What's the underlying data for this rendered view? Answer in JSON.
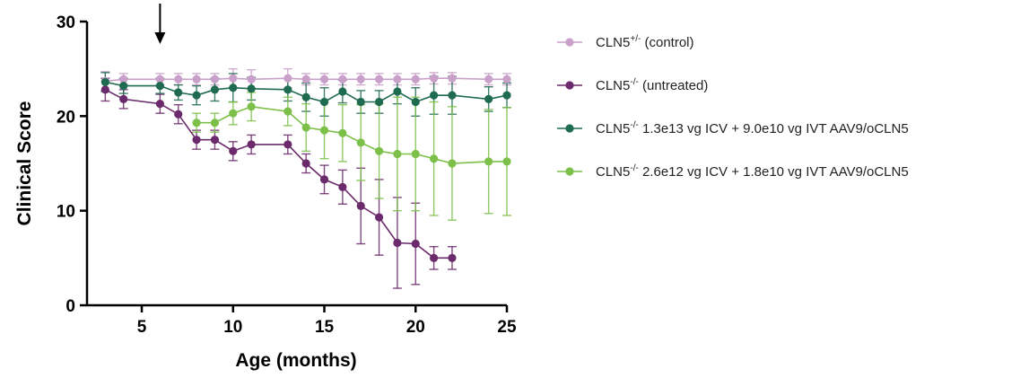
{
  "chart_data": {
    "type": "line",
    "xlabel": "Age (months)",
    "ylabel": "Clinical Score",
    "xlim": [
      2,
      25
    ],
    "ylim": [
      0,
      30
    ],
    "x_ticks": [
      5,
      10,
      15,
      20,
      25
    ],
    "y_ticks": [
      0,
      10,
      20,
      30
    ],
    "x_tick_labels": [
      "5",
      "10",
      "15",
      "20",
      "25"
    ],
    "y_tick_labels": [
      "0",
      "10",
      "20",
      "30"
    ],
    "annotation": "arrow at 6 months",
    "arrow_x": 6,
    "legend_position": "right",
    "series": [
      {
        "name_base": "CLN5",
        "name_sup": "+/-",
        "name_rest": " (control)",
        "color": "#c9a0c9",
        "x": [
          3,
          4,
          6,
          7,
          8,
          9,
          10,
          11,
          13,
          14,
          15,
          16,
          17,
          18,
          19,
          20,
          21,
          22,
          24,
          25
        ],
        "y": [
          23.7,
          23.9,
          23.9,
          23.9,
          23.9,
          23.9,
          24.0,
          23.9,
          24.0,
          23.9,
          23.9,
          23.9,
          23.9,
          23.9,
          23.9,
          23.9,
          24.0,
          24.0,
          23.9,
          23.9
        ],
        "err": [
          1.0,
          0.6,
          0.6,
          0.6,
          0.6,
          0.6,
          1.0,
          1.0,
          1.0,
          0.6,
          0.6,
          0.6,
          0.6,
          0.6,
          0.6,
          0.6,
          0.6,
          0.6,
          0.6,
          0.6
        ]
      },
      {
        "name_base": "CLN5",
        "name_sup": "-/-",
        "name_rest": " (untreated)",
        "color": "#6b2a6b",
        "x": [
          3,
          4,
          6,
          7,
          8,
          9,
          10,
          11,
          13,
          14,
          15,
          16,
          17,
          18,
          19,
          20,
          21,
          22
        ],
        "y": [
          22.8,
          21.8,
          21.3,
          20.2,
          17.5,
          17.5,
          16.3,
          17.0,
          17.0,
          15.0,
          13.3,
          12.5,
          10.5,
          9.3,
          6.6,
          6.5,
          5.0,
          5.0
        ],
        "err": [
          1.2,
          1.0,
          1.0,
          1.0,
          1.0,
          1.0,
          1.0,
          1.0,
          1.0,
          1.0,
          1.5,
          1.8,
          4.0,
          4.0,
          4.8,
          4.3,
          1.2,
          1.2
        ]
      },
      {
        "name_base": "CLN5",
        "name_sup": "-/-",
        "name_rest": " 1.3e13 vg ICV  + 9.0e10 vg IVT AAV9/oCLN5",
        "color": "#1f6b4f",
        "x": [
          3,
          4,
          6,
          7,
          8,
          9,
          10,
          11,
          13,
          14,
          15,
          16,
          17,
          18,
          19,
          20,
          21,
          22,
          24,
          25
        ],
        "y": [
          23.6,
          23.2,
          23.2,
          22.5,
          22.2,
          22.8,
          23.0,
          22.9,
          22.8,
          22.0,
          21.5,
          22.6,
          21.5,
          21.5,
          22.6,
          21.5,
          22.2,
          22.2,
          21.8,
          22.2
        ],
        "err": [
          1.0,
          0.8,
          0.8,
          0.8,
          1.0,
          1.2,
          1.5,
          1.2,
          1.2,
          1.5,
          1.5,
          1.2,
          1.2,
          1.2,
          1.3,
          1.5,
          2.0,
          2.0,
          1.3,
          1.3
        ]
      },
      {
        "name_base": "CLN5",
        "name_sup": "-/-",
        "name_rest": " 2.6e12 vg ICV  + 1.8e10 vg IVT AAV9/oCLN5",
        "color": "#7cc04a",
        "x": [
          8,
          9,
          10,
          11,
          13,
          14,
          15,
          16,
          17,
          18,
          19,
          20,
          21,
          22,
          24,
          25
        ],
        "y": [
          19.3,
          19.3,
          20.3,
          21.0,
          20.5,
          18.8,
          18.5,
          18.2,
          17.2,
          16.3,
          16.0,
          16.0,
          15.5,
          15.0,
          15.2,
          15.2
        ],
        "err": [
          1.0,
          1.0,
          1.2,
          1.5,
          1.5,
          2.5,
          3.0,
          3.0,
          4.0,
          5.0,
          6.0,
          6.0,
          6.0,
          6.0,
          5.5,
          5.7
        ]
      }
    ]
  }
}
